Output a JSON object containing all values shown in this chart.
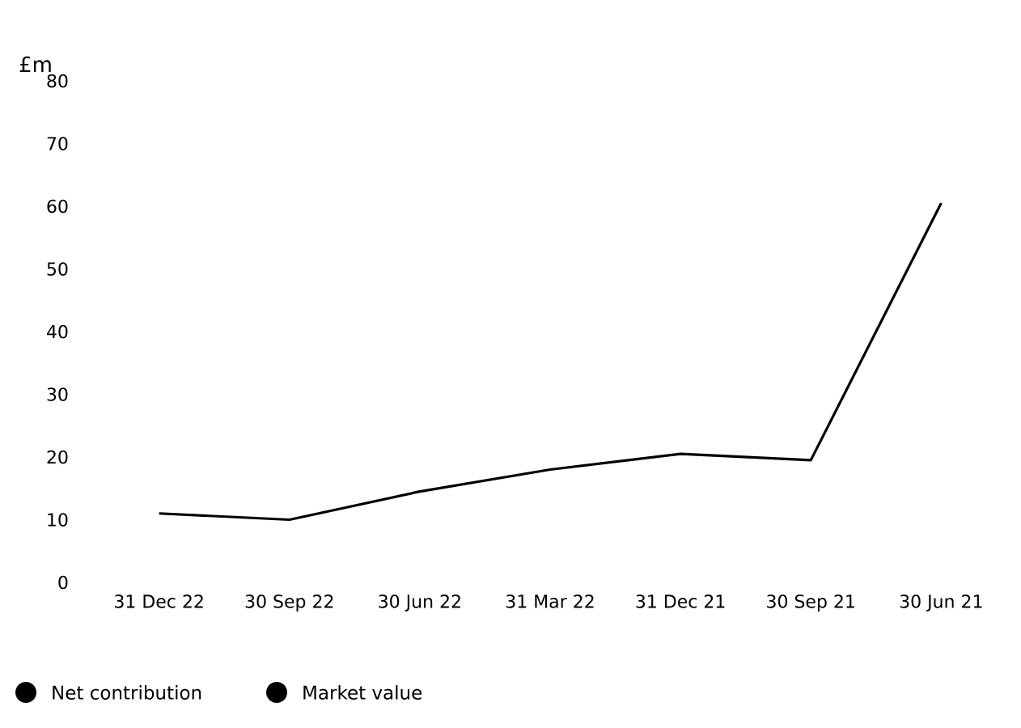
{
  "chart_data": {
    "type": "line",
    "ylabel": "£m",
    "categories": [
      "31 Dec 22",
      "30 Sep 22",
      "30 Jun 22",
      "31 Mar 22",
      "31 Dec 21",
      "30 Sep 21",
      "30 Jun 21"
    ],
    "series": [
      {
        "name": "Net contribution",
        "color": "#000000",
        "values": [
          null,
          null,
          null,
          null,
          null,
          null,
          null
        ]
      },
      {
        "name": "Market value",
        "color": "#000000",
        "values": [
          11,
          10,
          14.5,
          18,
          20.5,
          19.5,
          60.5
        ]
      }
    ],
    "ylim": [
      0,
      80
    ],
    "yticks": [
      0,
      10,
      20,
      30,
      40,
      50,
      60,
      70,
      80
    ],
    "legend": "bottom left",
    "marker": "none",
    "line_style": "solid"
  }
}
